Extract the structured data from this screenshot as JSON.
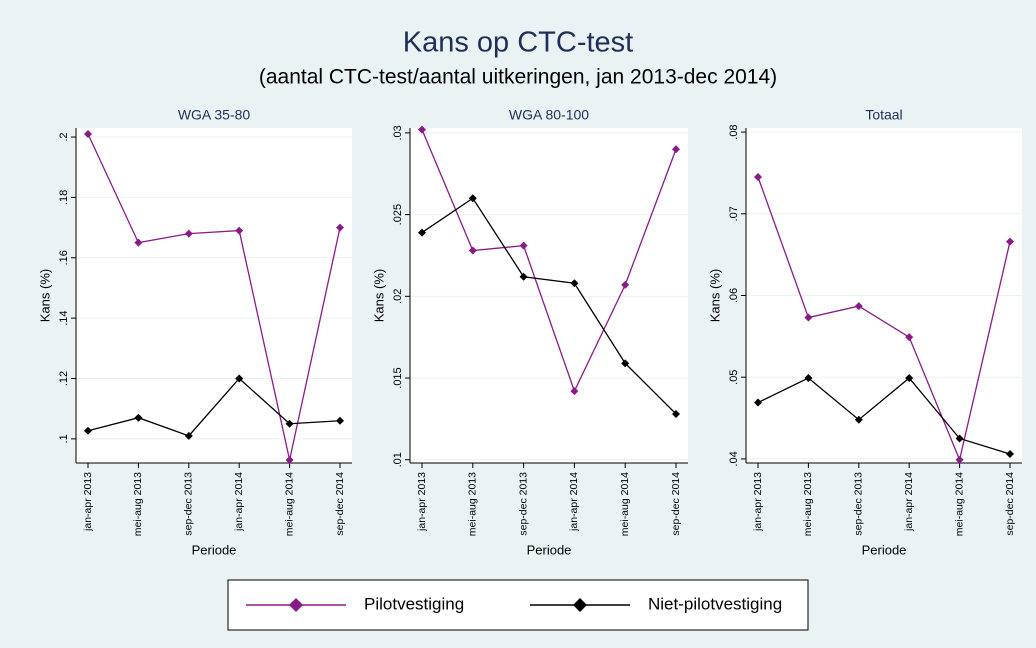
{
  "title": "Kans op CTC-test",
  "subtitle": "(aantal CTC-test/aantal uitkeringen, jan 2013-dec 2014)",
  "chart_data": [
    {
      "type": "line",
      "title": "WGA 35-80",
      "xlabel": "Periode",
      "ylabel": "Kans (%)",
      "categories": [
        "jan-apr 2013",
        "mei-aug 2013",
        "sep-dec 2013",
        "jan-apr 2014",
        "mei-aug 2014",
        "sep-dec 2014"
      ],
      "series": [
        {
          "name": "Pilotvestiging",
          "color": "#8b1a89",
          "values": [
            0.201,
            0.165,
            0.168,
            0.169,
            0.093,
            0.17
          ]
        },
        {
          "name": "Niet-pilotvestiging",
          "color": "#000000",
          "values": [
            0.1027,
            0.107,
            0.101,
            0.12,
            0.105,
            0.106
          ]
        }
      ],
      "ylim": [
        0.092,
        0.203
      ],
      "yticks": [
        {
          "value": 0.1,
          "label": ".1"
        },
        {
          "value": 0.12,
          "label": ".12"
        },
        {
          "value": 0.14,
          "label": ".14"
        },
        {
          "value": 0.16,
          "label": ".16"
        },
        {
          "value": 0.18,
          "label": ".18"
        },
        {
          "value": 0.2,
          "label": ".2"
        }
      ],
      "grid": true
    },
    {
      "type": "line",
      "title": "WGA 80-100",
      "xlabel": "Periode",
      "ylabel": "Kans (%)",
      "categories": [
        "jan-apr 2013",
        "mei-aug 2013",
        "sep-dec 2013",
        "jan-apr 2014",
        "mei-aug 2014",
        "sep-dec 2014"
      ],
      "series": [
        {
          "name": "Pilotvestiging",
          "color": "#8b1a89",
          "values": [
            0.0302,
            0.0228,
            0.0231,
            0.0142,
            0.0207,
            0.029
          ]
        },
        {
          "name": "Niet-pilotvestiging",
          "color": "#000000",
          "values": [
            0.0239,
            0.026,
            0.0212,
            0.0208,
            0.0159,
            0.0128
          ]
        }
      ],
      "ylim": [
        0.0098,
        0.0303
      ],
      "yticks": [
        {
          "value": 0.01,
          "label": ".01"
        },
        {
          "value": 0.015,
          "label": ".015"
        },
        {
          "value": 0.02,
          "label": ".02"
        },
        {
          "value": 0.025,
          "label": ".025"
        },
        {
          "value": 0.03,
          "label": ".03"
        }
      ],
      "grid": true
    },
    {
      "type": "line",
      "title": "Totaal",
      "xlabel": "Periode",
      "ylabel": "Kans (%)",
      "categories": [
        "jan-apr 2013",
        "mei-aug 2013",
        "sep-dec 2013",
        "jan-apr 2014",
        "mei-aug 2014",
        "sep-dec 2014"
      ],
      "series": [
        {
          "name": "Pilotvestiging",
          "color": "#8b1a89",
          "values": [
            0.0745,
            0.0573,
            0.0587,
            0.0549,
            0.0399,
            0.0666
          ]
        },
        {
          "name": "Niet-pilotvestiging",
          "color": "#000000",
          "values": [
            0.0469,
            0.0499,
            0.0448,
            0.0499,
            0.0425,
            0.0406
          ]
        }
      ],
      "ylim": [
        0.0395,
        0.0805
      ],
      "yticks": [
        {
          "value": 0.04,
          "label": ".04"
        },
        {
          "value": 0.05,
          "label": ".05"
        },
        {
          "value": 0.06,
          "label": ".06"
        },
        {
          "value": 0.07,
          "label": ".07"
        },
        {
          "value": 0.08,
          "label": ".08"
        }
      ],
      "grid": true
    }
  ]
}
